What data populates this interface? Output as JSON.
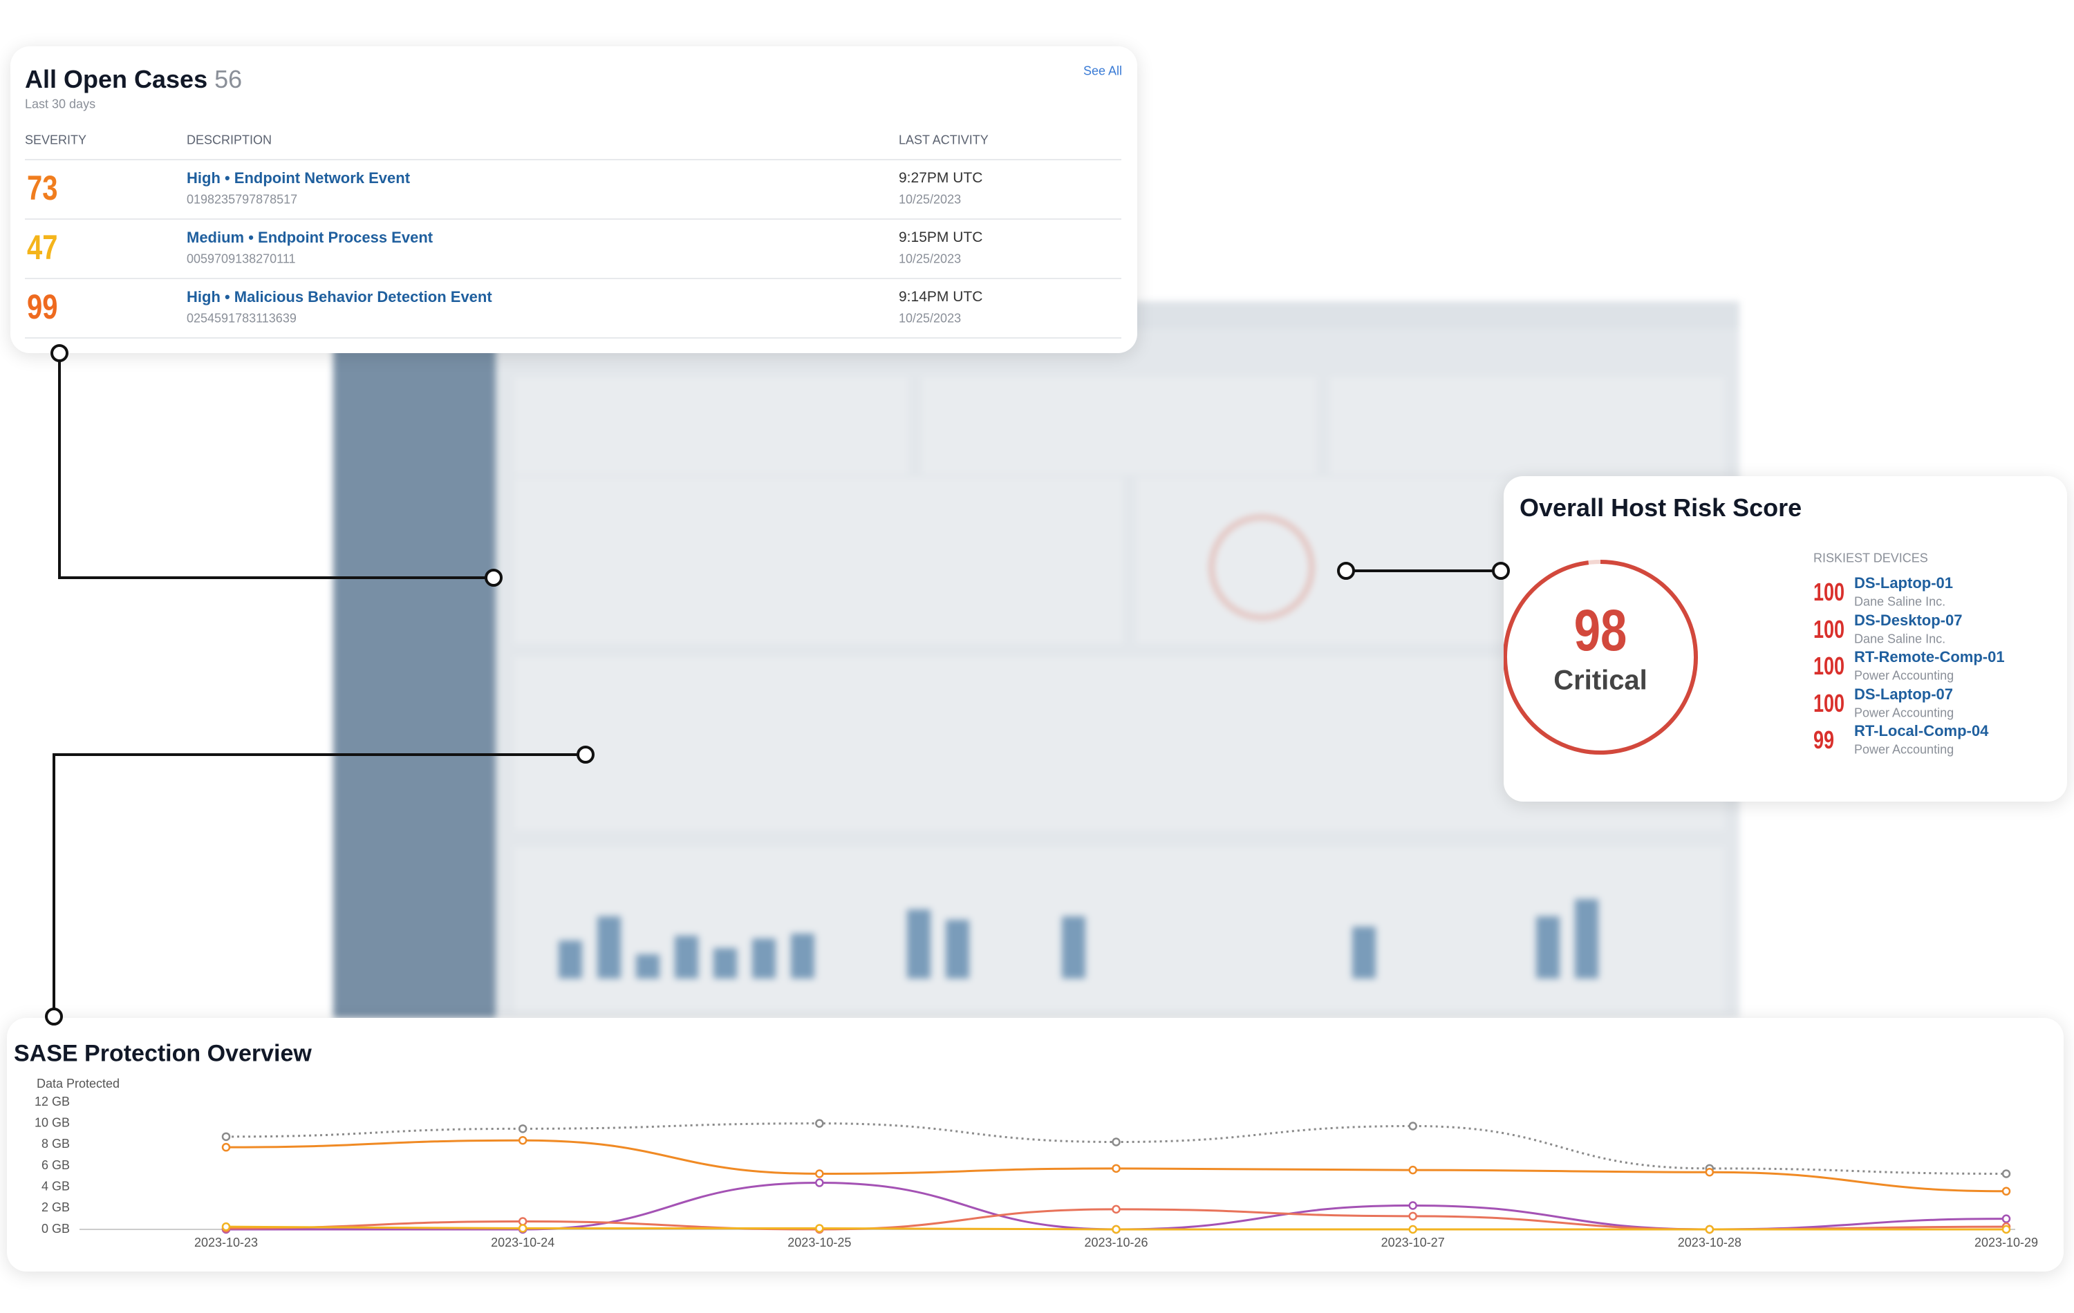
{
  "cases_card": {
    "title": "All Open Cases",
    "count": 56,
    "subtitle": "Last 30 days",
    "see_all": "See All",
    "columns": [
      "SEVERITY",
      "DESCRIPTION",
      "LAST ACTIVITY"
    ],
    "rows": [
      {
        "severity": 73,
        "color": "#f07d1e",
        "description": "High • Endpoint Network Event",
        "id": "0198235797878517",
        "time": "9:27PM UTC",
        "date": "10/25/2023"
      },
      {
        "severity": 47,
        "color": "#f4b41a",
        "description": "Medium • Endpoint Process Event",
        "id": "0059709138270111",
        "time": "9:15PM UTC",
        "date": "10/25/2023"
      },
      {
        "severity": 99,
        "color": "#ee6a1f",
        "description": "High • Malicious Behavior Detection Event",
        "id": "0254591783113639",
        "time": "9:14PM UTC",
        "date": "10/25/2023"
      }
    ]
  },
  "risk_card": {
    "title": "Overall Host Risk Score",
    "score": 98,
    "rating": "Critical",
    "devices_label": "RISKIEST DEVICES",
    "devices": [
      {
        "score": 100,
        "name": "DS-Laptop-01",
        "org": "Dane Saline Inc."
      },
      {
        "score": 100,
        "name": "DS-Desktop-07",
        "org": "Dane Saline Inc."
      },
      {
        "score": 100,
        "name": "RT-Remote-Comp-01",
        "org": "Power Accounting"
      },
      {
        "score": 100,
        "name": "DS-Laptop-07",
        "org": "Power Accounting"
      },
      {
        "score": 99,
        "name": "RT-Local-Comp-04",
        "org": "Power Accounting"
      }
    ]
  },
  "chart_data": {
    "type": "line",
    "title": "SASE Protection Overview",
    "y_label": "Data Protected",
    "categories": [
      "2023-10-23",
      "2023-10-24",
      "2023-10-25",
      "2023-10-26",
      "2023-10-27",
      "2023-10-28",
      "2023-10-29"
    ],
    "ylim": [
      0,
      12
    ],
    "yticks": [
      {
        "value": 0,
        "label": "0 GB"
      },
      {
        "value": 2,
        "label": "2 GB"
      },
      {
        "value": 4,
        "label": "4 GB"
      },
      {
        "value": 6,
        "label": "6 GB"
      },
      {
        "value": 8,
        "label": "8 GB"
      },
      {
        "value": 10,
        "label": "10 GB"
      },
      {
        "value": 12,
        "label": "12 GB"
      }
    ],
    "series": [
      {
        "color": "#8a8a8a",
        "line_style": "dotted",
        "values": [
          8.75,
          9.5,
          10,
          8.25,
          9.75,
          5.75,
          5.25
        ]
      },
      {
        "color": "#f08a24",
        "line_style": "solid",
        "values": [
          7.75,
          8.4,
          5.25,
          5.75,
          5.6,
          5.4,
          3.6
        ]
      },
      {
        "color": "#a452b4",
        "line_style": "solid",
        "values": [
          0,
          0,
          4.4,
          0,
          2.25,
          0,
          1
        ]
      },
      {
        "color": "#e8735a",
        "line_style": "solid",
        "values": [
          0.1,
          0.75,
          0,
          1.9,
          1.25,
          0,
          0.25
        ]
      },
      {
        "color": "#f2b321",
        "line_style": "solid",
        "values": [
          0.25,
          0.1,
          0.1,
          0,
          0,
          0,
          0
        ]
      }
    ]
  }
}
